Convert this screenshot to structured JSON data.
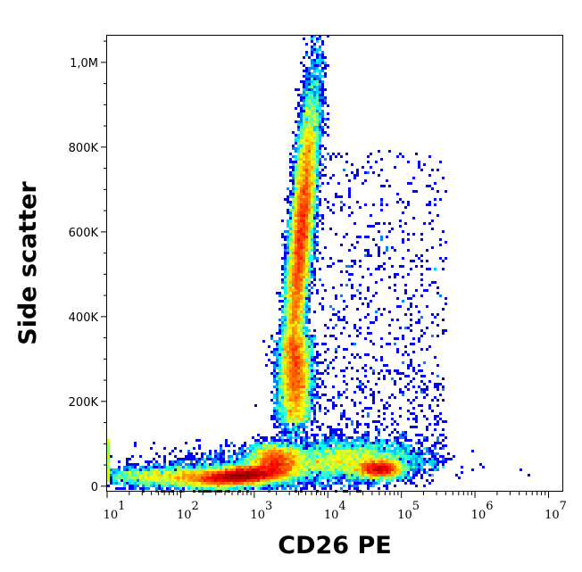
{
  "chart_data": {
    "type": "heatmap",
    "subtype": "flow-cytometry density dot plot",
    "xlabel": "CD26 PE",
    "ylabel": "Side scatter",
    "x_scale": "log",
    "xlim_log10": [
      1.0,
      7.2
    ],
    "ylim": [
      -13000,
      1065000
    ],
    "x_ticks": [
      {
        "exp": 1,
        "base": "10",
        "sup": "1"
      },
      {
        "exp": 2,
        "base": "10",
        "sup": "2"
      },
      {
        "exp": 3,
        "base": "10",
        "sup": "3"
      },
      {
        "exp": 4,
        "base": "10",
        "sup": "4"
      },
      {
        "exp": 5,
        "base": "10",
        "sup": "5"
      },
      {
        "exp": 6,
        "base": "10",
        "sup": "6"
      },
      {
        "exp": 7,
        "base": "10",
        "sup": "7"
      }
    ],
    "y_ticks": [
      {
        "value": 0,
        "label": "0"
      },
      {
        "value": 200000,
        "label": "200K"
      },
      {
        "value": 400000,
        "label": "400K"
      },
      {
        "value": 600000,
        "label": "600K"
      },
      {
        "value": 800000,
        "label": "800K"
      },
      {
        "value": 1000000,
        "label": "1,0M"
      }
    ],
    "colormap": "jet (blue = low density, red = high density)",
    "populations": [
      {
        "name": "CD26 low/intermediate, low SSC",
        "log10_x_center": 2.85,
        "y_center": 28000,
        "peak_density": "high"
      },
      {
        "name": "CD26 intermediate, low SSC",
        "log10_x_center": 3.3,
        "y_center": 65000,
        "peak_density": "medium-high"
      },
      {
        "name": "CD26 high, low SSC",
        "log10_x_center": 4.7,
        "y_center": 40000,
        "peak_density": "medium"
      },
      {
        "name": "CD26 intermediate, high SSC (granulocytes)",
        "log10_x_center": 3.65,
        "y_center": 600000,
        "peak_density": "high"
      }
    ]
  }
}
